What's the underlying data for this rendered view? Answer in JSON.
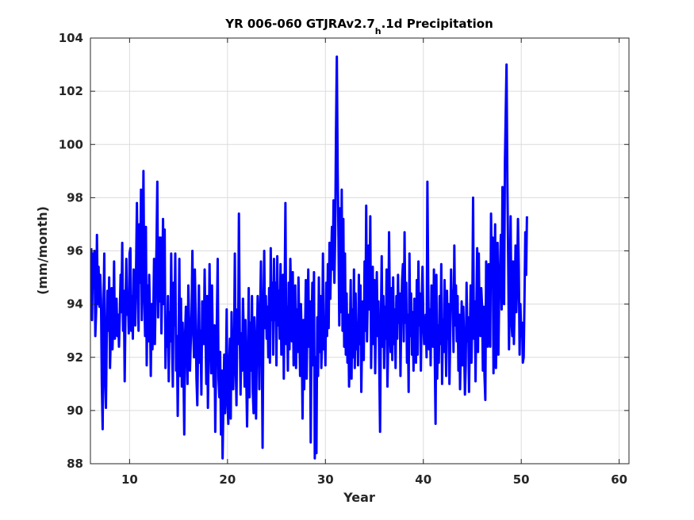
{
  "chart_data": {
    "type": "line",
    "title": {
      "main": "YR 006-060 GTJRAv2.7",
      "sub": "h",
      "suffix": ".1d Precipitation"
    },
    "xlabel": "Year",
    "ylabel": "(mm/month)",
    "xlim": [
      6,
      61
    ],
    "ylim": [
      88,
      104
    ],
    "xticks": [
      10,
      20,
      30,
      40,
      50,
      60
    ],
    "yticks": [
      88,
      90,
      92,
      94,
      96,
      98,
      100,
      102,
      104
    ],
    "grid": true,
    "color": "#0000ff",
    "x_start": 6.0833,
    "x_step": 0.08333,
    "series": [
      {
        "values": [
          96.1,
          93.4,
          95.9,
          94.6,
          96.0,
          92.8,
          93.7,
          96.6,
          94.0,
          95.4,
          93.9,
          95.1,
          94.2,
          91.0,
          89.3,
          93.8,
          95.9,
          91.2,
          90.1,
          92.7,
          94.5,
          93.0,
          95.0,
          91.6,
          92.8,
          94.6,
          92.3,
          93.3,
          95.6,
          92.7,
          93.8,
          94.2,
          92.8,
          93.6,
          92.4,
          93.6,
          95.1,
          93.7,
          96.3,
          93.0,
          94.5,
          91.1,
          93.8,
          95.7,
          93.6,
          94.3,
          92.9,
          95.9,
          96.1,
          93.0,
          94.3,
          92.7,
          95.3,
          94.1,
          93.2,
          95.4,
          97.8,
          95.0,
          93.0,
          97.0,
          94.8,
          98.3,
          93.4,
          95.4,
          99.0,
          94.5,
          92.8,
          96.9,
          91.7,
          94.7,
          92.6,
          95.1,
          93.6,
          91.3,
          94.0,
          92.3,
          93.4,
          95.7,
          92.5,
          94.4,
          96.2,
          98.6,
          93.5,
          96.5,
          94.1,
          96.5,
          92.9,
          94.9,
          97.2,
          94.0,
          96.8,
          91.6,
          93.4,
          92.4,
          94.3,
          91.1,
          93.7,
          92.6,
          95.9,
          92.7,
          90.9,
          94.8,
          93.2,
          95.9,
          91.5,
          92.8,
          89.8,
          92.4,
          95.7,
          91.3,
          94.2,
          90.9,
          93.3,
          91.6,
          89.1,
          92.8,
          93.9,
          92.7,
          91.0,
          94.7,
          93.3,
          91.5,
          92.6,
          93.7,
          96.0,
          93.0,
          92.0,
          95.3,
          93.6,
          91.2,
          90.2,
          92.6,
          94.7,
          91.8,
          93.0,
          90.6,
          94.1,
          93.6,
          92.5,
          95.3,
          93.1,
          91.0,
          94.3,
          90.1,
          92.4,
          95.5,
          92.9,
          91.4,
          94.7,
          92.5,
          90.9,
          93.2,
          89.2,
          91.8,
          93.5,
          95.7,
          91.2,
          90.5,
          92.2,
          89.1,
          91.5,
          88.2,
          90.3,
          92.1,
          89.9,
          91.2,
          93.8,
          90.3,
          89.5,
          91.6,
          92.7,
          89.7,
          93.7,
          91.3,
          90.8,
          92.3,
          95.9,
          91.8,
          90.2,
          93.8,
          92.5,
          97.4,
          93.1,
          90.6,
          92.9,
          91.5,
          94.2,
          92.7,
          90.9,
          93.4,
          91.3,
          89.4,
          91.7,
          94.6,
          90.5,
          93.3,
          91.5,
          94.3,
          90.7,
          89.9,
          93.5,
          91.8,
          89.7,
          92.6,
          94.3,
          93.1,
          90.8,
          93.7,
          95.6,
          92.8,
          88.6,
          93.5,
          96.0,
          93.1,
          94.3,
          92.7,
          93.9,
          92.0,
          94.6,
          91.8,
          96.1,
          93.4,
          94.8,
          92.1,
          95.7,
          93.4,
          94.8,
          91.7,
          95.8,
          93.2,
          94.5,
          92.7,
          95.5,
          92.1,
          93.8,
          95.1,
          91.2,
          94.3,
          97.8,
          92.5,
          93.9,
          91.5,
          94.8,
          92.3,
          95.7,
          94.1,
          92.6,
          95.2,
          91.7,
          93.4,
          94.7,
          91.6,
          93.8,
          92.2,
          95.0,
          92.9,
          91.3,
          94.0,
          92.6,
          89.7,
          93.4,
          90.8,
          92.8,
          94.9,
          91.2,
          93.5,
          95.3,
          92.4,
          94.1,
          88.8,
          92.9,
          94.8,
          91.7,
          95.2,
          88.2,
          92.0,
          88.4,
          93.5,
          91.3,
          95.0,
          92.2,
          94.3,
          91.6,
          92.7,
          95.9,
          92.3,
          93.4,
          91.7,
          94.8,
          92.8,
          95.5,
          93.1,
          96.3,
          94.2,
          95.7,
          96.9,
          95.3,
          97.9,
          94.8,
          96.6,
          100.5,
          103.3,
          99.1,
          96.5,
          93.2,
          97.6,
          93.7,
          98.3,
          93.0,
          97.2,
          92.4,
          95.9,
          92.1,
          94.4,
          91.8,
          93.6,
          90.9,
          92.7,
          94.9,
          91.2,
          93.8,
          92.0,
          95.3,
          91.6,
          94.4,
          92.3,
          93.3,
          91.7,
          95.1,
          92.5,
          94.7,
          90.7,
          92.8,
          94.1,
          91.9,
          95.6,
          93.0,
          97.7,
          92.6,
          94.4,
          96.2,
          93.8,
          97.3,
          91.6,
          93.7,
          95.4,
          92.5,
          94.9,
          91.4,
          93.6,
          95.2,
          92.8,
          94.1,
          91.7,
          89.2,
          93.3,
          95.8,
          92.4,
          94.3,
          91.6,
          93.9,
          92.7,
          95.3,
          90.9,
          92.6,
          96.7,
          93.8,
          92.2,
          94.6,
          91.9,
          95.0,
          92.5,
          93.8,
          91.6,
          94.3,
          92.7,
          95.1,
          93.3,
          94.4,
          91.3,
          93.7,
          94.9,
          95.5,
          92.6,
          96.7,
          93.3,
          94.8,
          91.8,
          93.6,
          90.7,
          95.9,
          92.8,
          94.4,
          92.1,
          93.7,
          91.5,
          94.2,
          92.8,
          91.8,
          94.9,
          92.1,
          95.6,
          93.2,
          94.4,
          91.5,
          93.8,
          95.4,
          93.4,
          92.5,
          93.1,
          93.6,
          92.0,
          98.6,
          94.8,
          92.3,
          93.8,
          91.7,
          94.7,
          93.1,
          92.4,
          95.3,
          92.1,
          89.5,
          95.1,
          91.2,
          93.2,
          91.8,
          94.3,
          92.5,
          95.5,
          91.0,
          93.4,
          92.2,
          94.9,
          93.6,
          91.3,
          94.5,
          92.7,
          94.0,
          91.0,
          92.8,
          95.3,
          93.9,
          94.5,
          92.2,
          96.2,
          93.2,
          94.7,
          92.6,
          94.3,
          91.5,
          93.6,
          90.8,
          92.3,
          94.1,
          91.7,
          93.9,
          92.4,
          90.6,
          91.7,
          94.8,
          92.6,
          93.5,
          90.7,
          92.8,
          94.7,
          91.8,
          93.6,
          98.0,
          92.7,
          94.1,
          91.1,
          93.8,
          96.1,
          92.2,
          95.9,
          93.0,
          92.8,
          94.6,
          93.9,
          91.5,
          93.9,
          91.3,
          90.4,
          95.6,
          93.5,
          92.4,
          95.5,
          94.9,
          92.4,
          97.4,
          94.7,
          96.5,
          91.4,
          94.4,
          97.0,
          91.6,
          93.4,
          96.3,
          92.1,
          94.4,
          95.3,
          96.6,
          93.8,
          98.4,
          94.6,
          94.0,
          99.3,
          101.2,
          103.0,
          98.6,
          95.7,
          92.3,
          94.2,
          97.3,
          93.4,
          92.8,
          95.6,
          92.5,
          94.1,
          96.2,
          93.7,
          94.9,
          97.2,
          95.4,
          92.1,
          94.0,
          92.8,
          93.3,
          91.8,
          92.0,
          94.2,
          96.7,
          95.1,
          97.3
        ]
      }
    ]
  }
}
